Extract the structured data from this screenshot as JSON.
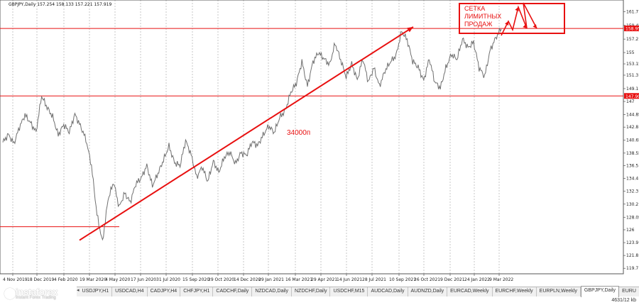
{
  "symbol_info": "GBPJPY,Daily  157.254 158.133 157.221 157.919",
  "chart_data": {
    "type": "line",
    "x_ticks": [
      "4 Nov 2019",
      "18 Dec 2019",
      "4 Feb 2020",
      "19 Mar 2020",
      "4 May 2020",
      "17 Jun 2020",
      "31 Jul 2020",
      "15 Sep 2020",
      "29 Oct 2020",
      "14 Dec 2020",
      "29 Jan 2021",
      "16 Mar 2021",
      "29 Apr 2021",
      "14 Jun 2021",
      "28 Jul 2021",
      "10 Sep 2021",
      "26 Oct 2021",
      "9 Dec 2021",
      "24 Jan 2022",
      "9 Mar 2022"
    ],
    "y_ticks": [
      161.7,
      159.45,
      157.2,
      155.0,
      153.15,
      151.3,
      149.1,
      147.0,
      144.85,
      142.8,
      140.65,
      138.55,
      136.5,
      134.4,
      132.3,
      130.2,
      128.05,
      126.0,
      123.9,
      121.8,
      119.7
    ],
    "ylim": [
      118.8,
      163.6
    ],
    "grid": "vertical-dotted",
    "series": [
      {
        "values": [
          140.3,
          141.6,
          140.1,
          142.8,
          144.8,
          143.5,
          142.0,
          147.9,
          146.0,
          144.5,
          141.5,
          143.2,
          142.0,
          144.9,
          143.0,
          140.8,
          136.5,
          128.5,
          124.0,
          131.0,
          133.8,
          129.7,
          132.0,
          130.5,
          133.5,
          134.5,
          136.5,
          133.2,
          135.2,
          137.4,
          139.7,
          137.0,
          136.5,
          140.6,
          138.3,
          134.6,
          136.3,
          133.9,
          137.2,
          135.4,
          137.9,
          138.7,
          136.8,
          138.6,
          138.2,
          140.4,
          139.8,
          141.5,
          143.0,
          141.9,
          144.4,
          145.5,
          148.5,
          150.0,
          153.5,
          149.5,
          153.5,
          155.0,
          154.0,
          153.0,
          156.5,
          153.8,
          151.0,
          153.2,
          150.5,
          154.0,
          150.2,
          152.5,
          149.5,
          152.0,
          153.5,
          154.5,
          158.5,
          157.1,
          153.6,
          152.6,
          150.4,
          154.0,
          150.2,
          149.2,
          152.5,
          154.7,
          153.9,
          157.2,
          155.8,
          156.7,
          152.5,
          151.1,
          155.4,
          157.4,
          159.0
        ]
      }
    ],
    "price_labels": {
      "right_top": "158.95",
      "right_bottom": "147.90"
    },
    "horizontal_levels": [
      158.95,
      147.9,
      126.5
    ],
    "trend": {
      "x": [
        "19 Mar 2020",
        "10 Sep 2021"
      ],
      "y": [
        124.3,
        159.2
      ]
    },
    "annotations": {
      "trend_label": "34000п",
      "box_text": [
        "СЕТКА",
        "ЛИМИТНЫХ",
        "ПРОДАЖ"
      ]
    }
  },
  "tabs": [
    {
      "label": "USDJPY,H1"
    },
    {
      "label": "USDCAD,H4"
    },
    {
      "label": "CADJPY,H4"
    },
    {
      "label": "CHFJPY,H1"
    },
    {
      "label": "CADCHF,Daily"
    },
    {
      "label": "NZDCAD,Daily"
    },
    {
      "label": "NZDCHF,Daily"
    },
    {
      "label": "USDCHF,M15"
    },
    {
      "label": "AUDCAD,Daily"
    },
    {
      "label": "AUDNZD,Daily"
    },
    {
      "label": "EURCAD,Weekly"
    },
    {
      "label": "EURCHF,Weekly"
    },
    {
      "label": "EURPLN,Weekly"
    },
    {
      "label": "GBPJPY,Daily"
    },
    {
      "label": "EURU"
    }
  ],
  "active_tab": "GBPJPY,Daily",
  "logo": {
    "name": "instaforex",
    "sub": "Instant Forex Trading"
  },
  "status": {
    "traffic": "4631/12 kb"
  },
  "colors": {
    "annotation": "#e81010",
    "price": "#6f6f6f",
    "price_label_bg": "#e81010"
  }
}
